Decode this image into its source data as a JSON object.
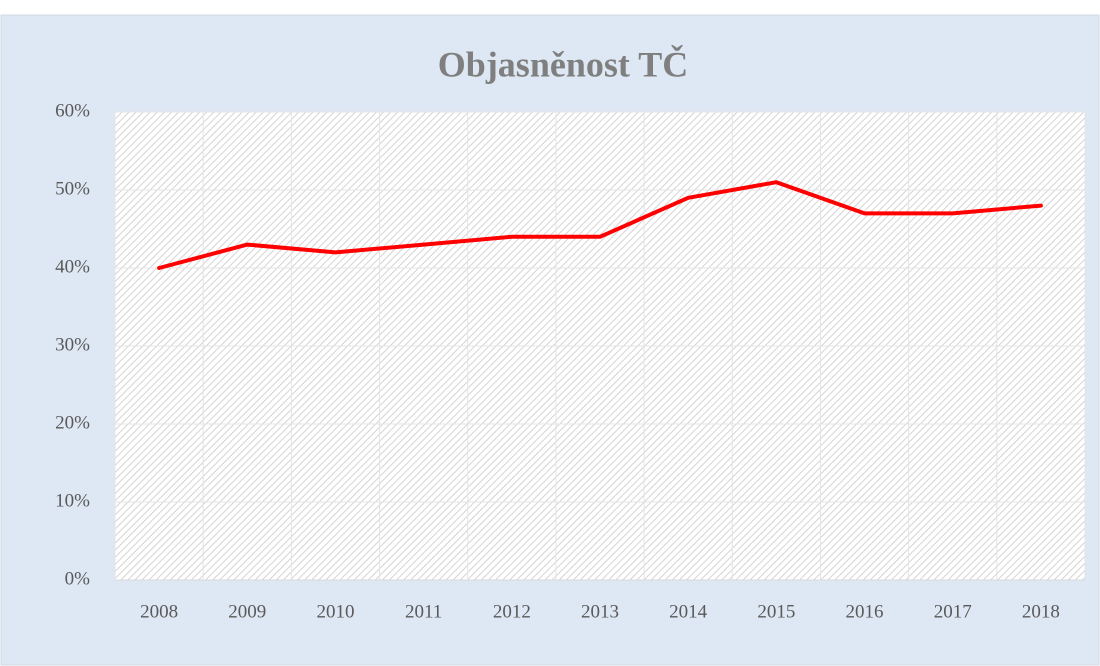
{
  "chart_data": {
    "type": "line",
    "title": "Objasněnost TČ",
    "categories": [
      "2008",
      "2009",
      "2010",
      "2011",
      "2012",
      "2013",
      "2014",
      "2015",
      "2016",
      "2017",
      "2018"
    ],
    "values": [
      40,
      43,
      42,
      43,
      44,
      44,
      49,
      51,
      47,
      47,
      48
    ],
    "color": "#ff0000",
    "ylim": [
      0,
      60
    ],
    "yticks": [
      {
        "value": 0,
        "label": "0%"
      },
      {
        "value": 10,
        "label": "10%"
      },
      {
        "value": 20,
        "label": "20%"
      },
      {
        "value": 30,
        "label": "30%"
      },
      {
        "value": 40,
        "label": "40%"
      },
      {
        "value": 50,
        "label": "50%"
      },
      {
        "value": 60,
        "label": "60%"
      }
    ],
    "grid": true
  }
}
